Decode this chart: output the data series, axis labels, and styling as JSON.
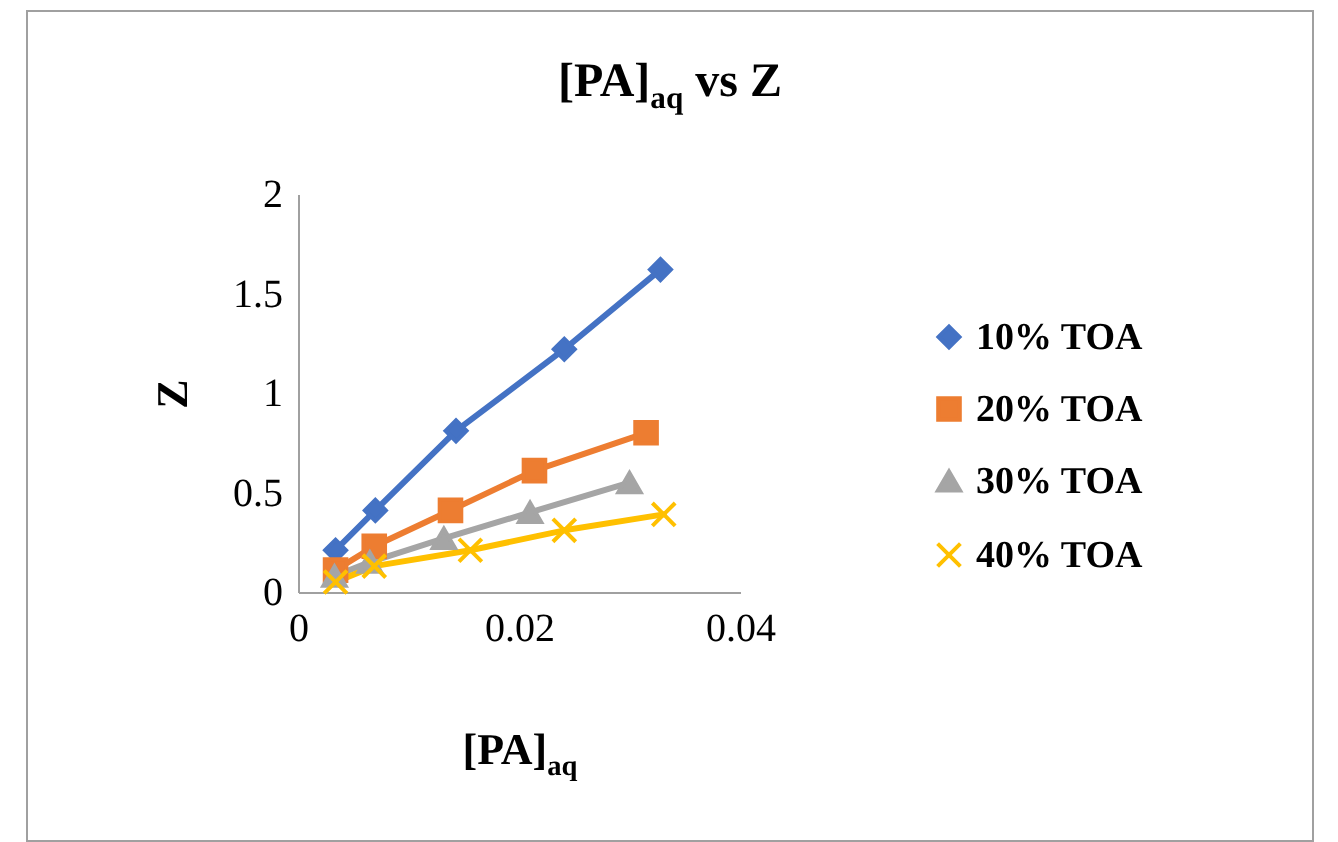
{
  "chart_data": {
    "type": "line",
    "title": "[PA]$_{aq}$ vs Z",
    "xlabel": "[PA]$_{aq}$",
    "ylabel": "Z",
    "xlim": [
      0,
      0.04
    ],
    "xticks": [
      0,
      0.02,
      0.04
    ],
    "ylim": [
      0,
      2
    ],
    "yticks": [
      0,
      0.5,
      1,
      1.5,
      2
    ],
    "legend": "right",
    "series": [
      {
        "name": "10% TOA",
        "color": "#4472c4",
        "marker": "diamond",
        "x": [
          0.0034,
          0.007,
          0.0143,
          0.0241,
          0.0328
        ],
        "values": [
          0.21,
          0.41,
          0.81,
          1.22,
          1.62
        ]
      },
      {
        "name": "20% TOA",
        "color": "#ed7d31",
        "marker": "square",
        "x": [
          0.0034,
          0.0069,
          0.0138,
          0.0214,
          0.0315
        ],
        "values": [
          0.11,
          0.23,
          0.41,
          0.61,
          0.8
        ]
      },
      {
        "name": "30% TOA",
        "color": "#a5a5a5",
        "marker": "triangle",
        "x": [
          0.0033,
          0.0065,
          0.0132,
          0.021,
          0.03
        ],
        "values": [
          0.08,
          0.15,
          0.27,
          0.4,
          0.55
        ]
      },
      {
        "name": "40% TOA",
        "color": "#ffc000",
        "marker": "cross",
        "x": [
          0.0034,
          0.0069,
          0.0156,
          0.0241,
          0.0331
        ],
        "values": [
          0.05,
          0.13,
          0.21,
          0.31,
          0.39
        ]
      }
    ]
  }
}
